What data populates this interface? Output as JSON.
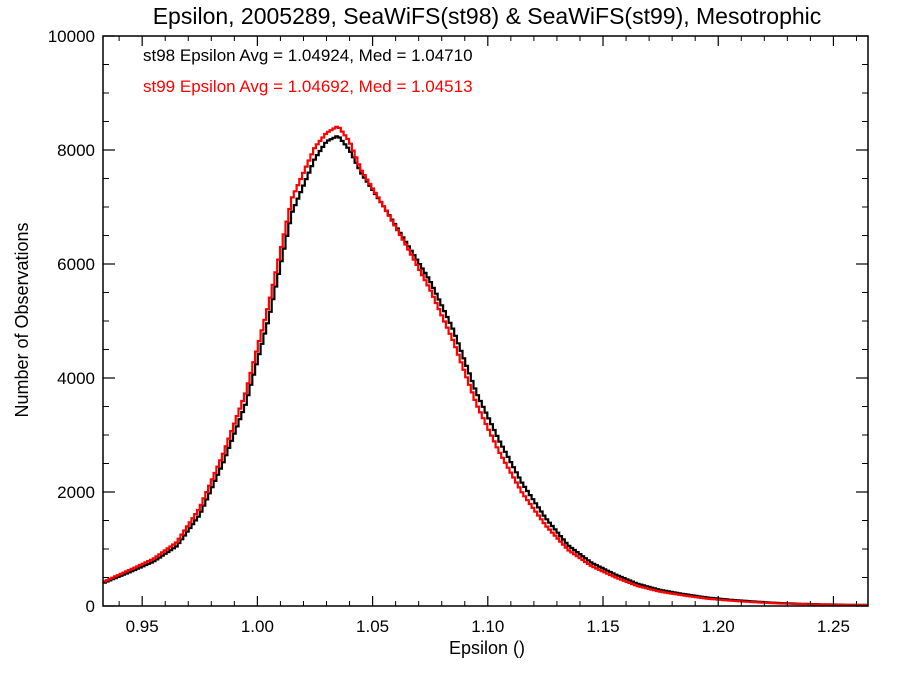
{
  "chart_data": {
    "type": "histogram",
    "title": "Epsilon, 2005289, SeaWiFS(st98) & SeaWiFS(st99), Mesotrophic",
    "xlabel": "Epsilon ()",
    "ylabel": "Number of Observations",
    "xlim": [
      0.933,
      1.265
    ],
    "ylim": [
      0,
      10000
    ],
    "x_ticks": [
      0.95,
      1.0,
      1.05,
      1.1,
      1.15,
      1.2,
      1.25
    ],
    "x_tick_labels": [
      "0.95",
      "1.00",
      "1.05",
      "1.10",
      "1.15",
      "1.20",
      "1.25"
    ],
    "y_ticks": [
      0,
      2000,
      4000,
      6000,
      8000,
      10000
    ],
    "y_tick_labels": [
      "0",
      "2000",
      "4000",
      "6000",
      "8000",
      "10000"
    ],
    "grid": false,
    "legend_position": "top-left",
    "series": [
      {
        "name": "st98",
        "annotation": "st98 Epsilon Avg = 1.04924, Med = 1.04710",
        "color": "#000000",
        "bin_width": 0.0012,
        "x": [
          0.933,
          0.945,
          0.955,
          0.965,
          0.975,
          0.985,
          0.995,
          1.005,
          1.015,
          1.025,
          1.03,
          1.035,
          1.04,
          1.045,
          1.055,
          1.065,
          1.075,
          1.085,
          1.095,
          1.105,
          1.115,
          1.125,
          1.135,
          1.145,
          1.155,
          1.165,
          1.175,
          1.185,
          1.195,
          1.205,
          1.215,
          1.225,
          1.235,
          1.245,
          1.255,
          1.265
        ],
        "values": [
          400,
          600,
          780,
          1050,
          1600,
          2500,
          3550,
          5050,
          6900,
          7850,
          8150,
          8250,
          8000,
          7600,
          7000,
          6350,
          5700,
          4850,
          3750,
          2900,
          2150,
          1550,
          1060,
          760,
          560,
          390,
          280,
          210,
          150,
          110,
          80,
          55,
          40,
          30,
          22,
          18
        ]
      },
      {
        "name": "st99",
        "annotation": "st99 Epsilon Avg = 1.04692, Med = 1.04513",
        "color": "#ff0000",
        "bin_width": 0.0012,
        "x": [
          0.933,
          0.945,
          0.955,
          0.965,
          0.975,
          0.985,
          0.995,
          1.005,
          1.015,
          1.025,
          1.03,
          1.035,
          1.04,
          1.045,
          1.055,
          1.065,
          1.075,
          1.085,
          1.095,
          1.105,
          1.115,
          1.125,
          1.135,
          1.145,
          1.155,
          1.165,
          1.175,
          1.185,
          1.195,
          1.205,
          1.215,
          1.225,
          1.235,
          1.245,
          1.255,
          1.265
        ],
        "values": [
          420,
          640,
          830,
          1120,
          1720,
          2650,
          3750,
          5300,
          7150,
          8050,
          8300,
          8420,
          8150,
          7650,
          7000,
          6300,
          5550,
          4650,
          3550,
          2700,
          1980,
          1420,
          980,
          700,
          510,
          350,
          250,
          185,
          130,
          95,
          68,
          48,
          35,
          26,
          19,
          15
        ]
      }
    ]
  }
}
